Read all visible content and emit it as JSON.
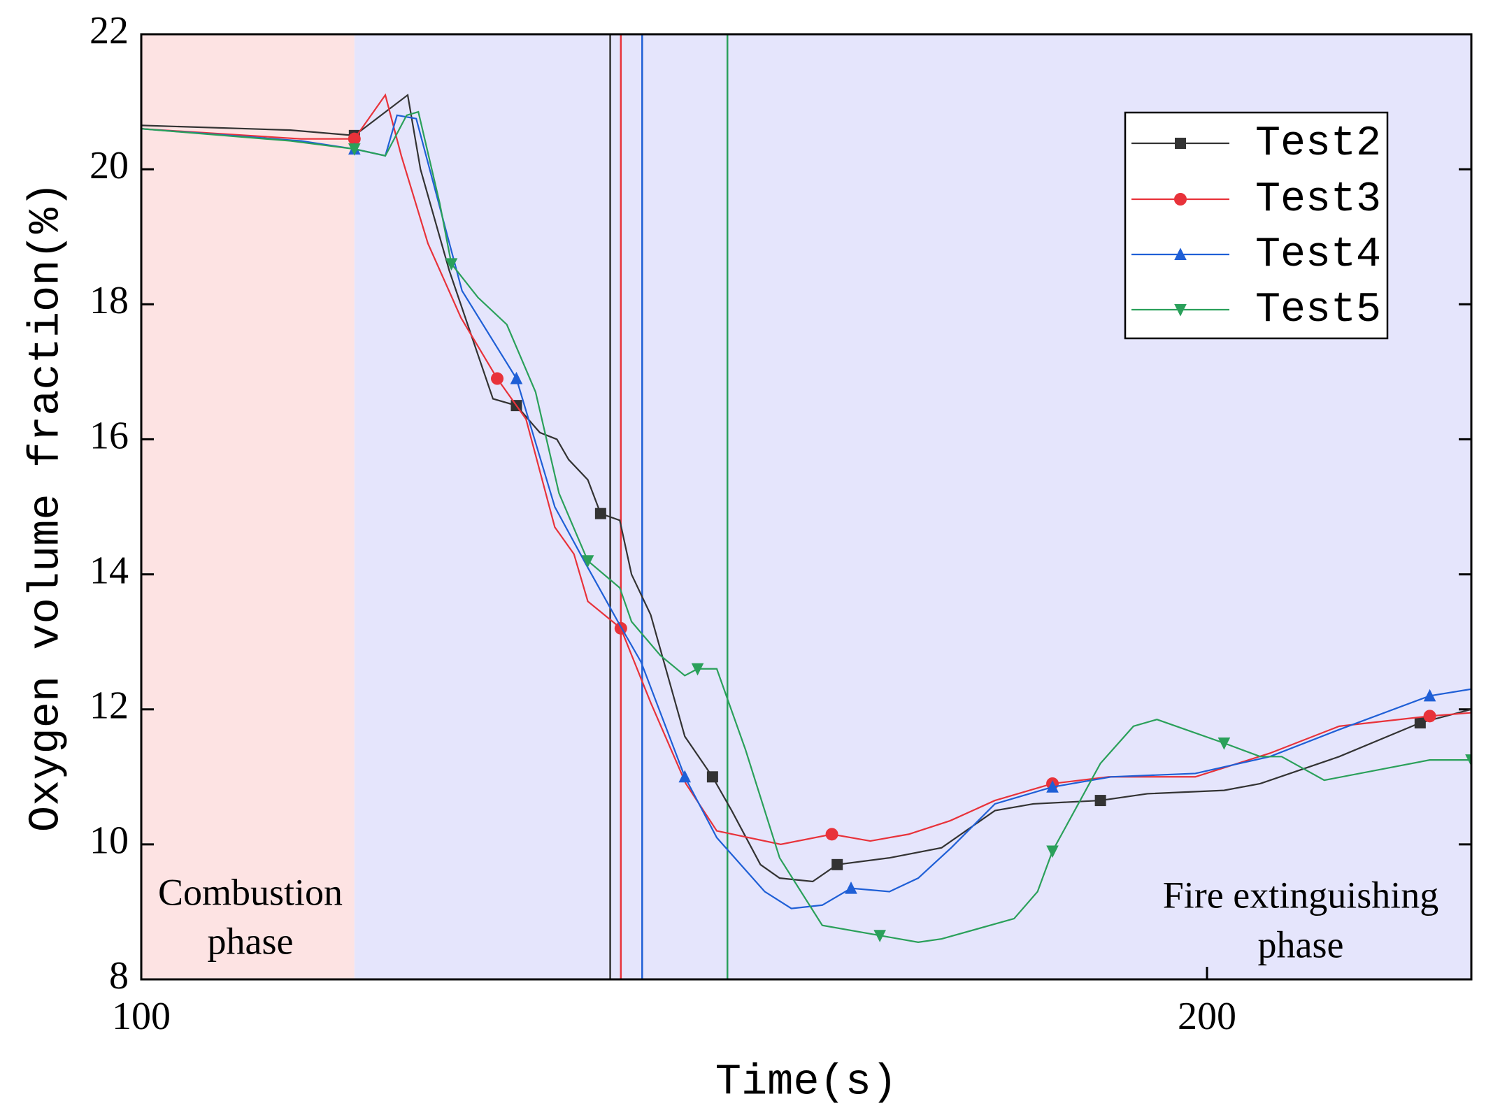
{
  "chart_data": {
    "type": "line",
    "xlabel": "Time(s)",
    "ylabel": "Oxygen volume fraction(%)",
    "xlim": [
      100,
      224.8
    ],
    "xticks": [
      100,
      200
    ],
    "ylim": [
      8,
      22
    ],
    "yticks": [
      8,
      10,
      12,
      14,
      16,
      18,
      20,
      22
    ],
    "legend": "upper right",
    "regions": [
      {
        "label": [
          "Combustion",
          "phase"
        ],
        "range": [
          100,
          120
        ],
        "color": "#fde3e3"
      },
      {
        "label": [
          "Fire extinguishing",
          "phase"
        ],
        "range": [
          120,
          224.8
        ],
        "color": "#e5e5fc"
      }
    ],
    "vlines": [
      {
        "x": 144,
        "color": "#333333"
      },
      {
        "x": 145,
        "color": "#e8323a"
      },
      {
        "x": 147,
        "color": "#1f5fd6"
      },
      {
        "x": 155,
        "color": "#2aa05a"
      }
    ],
    "series": [
      {
        "name": "Test2",
        "color": "#333333",
        "marker": "square",
        "x": [
          100,
          114,
          120,
          125,
          126.2,
          128.9,
          133,
          135.2,
          137.4,
          139,
          140.1,
          141.9,
          143.1,
          144.9,
          146,
          147.8,
          151,
          153.6,
          155.4,
          158.1,
          159.9,
          163,
          165.3,
          170.2,
          175.1,
          180.1,
          183.7,
          190,
          194.4,
          201.6,
          205,
          212.4,
          220,
          224.8
        ],
        "values": [
          20.65,
          20.58,
          20.5,
          21.1,
          20.0,
          18.5,
          16.6,
          16.5,
          16.1,
          16.0,
          15.7,
          15.4,
          14.9,
          14.8,
          14.0,
          13.4,
          11.6,
          11.0,
          10.5,
          9.7,
          9.5,
          9.45,
          9.7,
          9.8,
          9.95,
          10.5,
          10.6,
          10.65,
          10.75,
          10.8,
          10.9,
          11.3,
          11.8,
          12.0
        ]
      },
      {
        "name": "Test3",
        "color": "#e8323a",
        "marker": "circle",
        "x": [
          100,
          115,
          120,
          122.9,
          124.4,
          126.9,
          130,
          133.4,
          136.1,
          138.8,
          140.6,
          141.9,
          145,
          147.8,
          151.1,
          154,
          160,
          164.8,
          168.4,
          172,
          175.9,
          180.1,
          185.5,
          190.8,
          198.9,
          205.9,
          212.4,
          220.9,
          224.8
        ],
        "values": [
          20.6,
          20.45,
          20.45,
          21.1,
          20.2,
          18.9,
          17.8,
          16.9,
          16.3,
          14.7,
          14.3,
          13.6,
          13.2,
          12.1,
          10.9,
          10.2,
          10.0,
          10.15,
          10.05,
          10.15,
          10.35,
          10.65,
          10.9,
          11.0,
          11.0,
          11.35,
          11.75,
          11.9,
          11.95
        ]
      },
      {
        "name": "Test4",
        "color": "#1f5fd6",
        "marker": "triangle-up",
        "x": [
          100,
          115,
          120,
          122.9,
          124,
          125.8,
          130.1,
          135.2,
          138.8,
          141.9,
          144.9,
          146.9,
          151,
          154,
          158.5,
          161,
          163.9,
          166.6,
          170.2,
          172.9,
          176,
          180.1,
          185.5,
          191,
          198.9,
          205.9,
          212.4,
          220.9,
          224.8
        ],
        "values": [
          20.6,
          20.42,
          20.3,
          20.2,
          20.8,
          20.75,
          18.2,
          16.9,
          15.0,
          14.1,
          13.25,
          12.7,
          11.0,
          10.1,
          9.3,
          9.05,
          9.1,
          9.35,
          9.3,
          9.5,
          9.95,
          10.6,
          10.85,
          11.0,
          11.05,
          11.3,
          11.7,
          12.2,
          12.3
        ]
      },
      {
        "name": "Test5",
        "color": "#2aa05a",
        "marker": "triangle-down",
        "x": [
          100,
          114,
          120,
          122.9,
          124.9,
          126,
          128,
          129.1,
          131.6,
          134.3,
          137,
          139.2,
          141.9,
          144.9,
          146,
          148.7,
          151,
          152.2,
          154,
          156.7,
          159.9,
          163.9,
          169.3,
          172.9,
          175.1,
          181.9,
          184.1,
          185.5,
          190,
          193.1,
          195.3,
          198,
          201.6,
          205,
          207,
          211,
          220.9,
          224.8
        ],
        "values": [
          20.6,
          20.42,
          20.3,
          20.2,
          20.8,
          20.85,
          19.5,
          18.6,
          18.1,
          17.7,
          16.7,
          15.2,
          14.2,
          13.8,
          13.3,
          12.8,
          12.5,
          12.6,
          12.6,
          11.4,
          9.8,
          8.8,
          8.65,
          8.55,
          8.6,
          8.9,
          9.3,
          9.9,
          11.2,
          11.75,
          11.85,
          11.7,
          11.5,
          11.3,
          11.3,
          10.95,
          11.25,
          11.25
        ]
      }
    ]
  }
}
